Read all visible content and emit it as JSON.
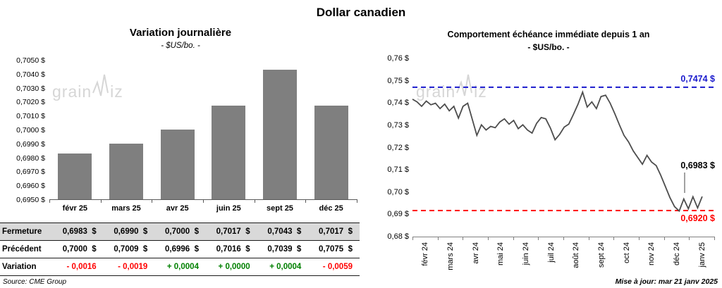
{
  "title": "Dollar canadien",
  "watermark": {
    "pre": "grain",
    "post": "iz"
  },
  "palette": {
    "red": "#FF0000",
    "green": "#008000"
  },
  "footer": {
    "source": "Source: CME Group",
    "updated": "Mise à jour: mar 21 janv 2025"
  },
  "table": {
    "rows": [
      {
        "label": "Fermeture",
        "shaded": true,
        "values": [
          "0,6983  $",
          "0,6990  $",
          "0,7000  $",
          "0,7017  $",
          "0,7043  $",
          "0,7017  $"
        ]
      },
      {
        "label": "Précédent",
        "shaded": false,
        "values": [
          "0,7000  $",
          "0,7009  $",
          "0,6996  $",
          "0,7016  $",
          "0,7039  $",
          "0,7075  $"
        ]
      },
      {
        "label": "Variation",
        "shaded": false,
        "values": [
          "- 0,0016",
          "- 0,0019",
          "+ 0,0004",
          "+ 0,0000",
          "+ 0,0004",
          "- 0,0059"
        ],
        "colors": [
          "red",
          "red",
          "green",
          "green",
          "green",
          "red"
        ]
      }
    ]
  },
  "chart_data": [
    {
      "type": "bar",
      "title": "Variation journalière",
      "subtitle": "- $US/bo. -",
      "categories": [
        "févr 25",
        "mars 25",
        "avr 25",
        "juin 25",
        "sept 25",
        "déc 25"
      ],
      "values": [
        0.6983,
        0.699,
        0.7,
        0.7017,
        0.7043,
        0.7017
      ],
      "ylim": [
        0.695,
        0.705
      ],
      "ytick_step": 0.001,
      "ytick_format": "0,0000 $",
      "bar_color": "#7F7F7F",
      "grid": false
    },
    {
      "type": "line",
      "title": "Comportement échéance immédiate depuis 1 an",
      "subtitle": "- $US/bo. -",
      "ylim": [
        0.68,
        0.76
      ],
      "ytick_step": 0.01,
      "ytick_format": "0,00 $",
      "x_labels": [
        "févr 24",
        "mars 24",
        "avr 24",
        "mai 24",
        "juin 24",
        "juil 24",
        "août 24",
        "sept 24",
        "oct 24",
        "nov 24",
        "déc 24",
        "janv 25"
      ],
      "line_color": "#4D4D4D",
      "grid": false,
      "resistance": {
        "value": 0.7474,
        "label": "0,7474 $",
        "color": "#1A1ACD",
        "style": "dashed"
      },
      "support": {
        "value": 0.692,
        "label": "0,6920 $",
        "color": "#FF0000",
        "style": "dashed"
      },
      "last_point": {
        "value": 0.6983,
        "label": "0,6983 $",
        "color": "#000000"
      },
      "series": [
        0.742,
        0.7408,
        0.7388,
        0.7412,
        0.7395,
        0.7402,
        0.7378,
        0.7398,
        0.7368,
        0.7388,
        0.7335,
        0.7388,
        0.7402,
        0.733,
        0.7258,
        0.7305,
        0.7282,
        0.7298,
        0.7292,
        0.7318,
        0.7332,
        0.7308,
        0.7325,
        0.7288,
        0.7305,
        0.7282,
        0.7268,
        0.7312,
        0.7338,
        0.7332,
        0.729,
        0.7238,
        0.7262,
        0.7295,
        0.7308,
        0.7352,
        0.7398,
        0.7452,
        0.7385,
        0.7408,
        0.7378,
        0.7432,
        0.7438,
        0.7402,
        0.7355,
        0.7305,
        0.7258,
        0.7228,
        0.7188,
        0.7158,
        0.7128,
        0.7168,
        0.7138,
        0.7122,
        0.7078,
        0.7028,
        0.6978,
        0.6938,
        0.6918,
        0.6972,
        0.6928,
        0.6982,
        0.6932,
        0.6983
      ]
    }
  ]
}
